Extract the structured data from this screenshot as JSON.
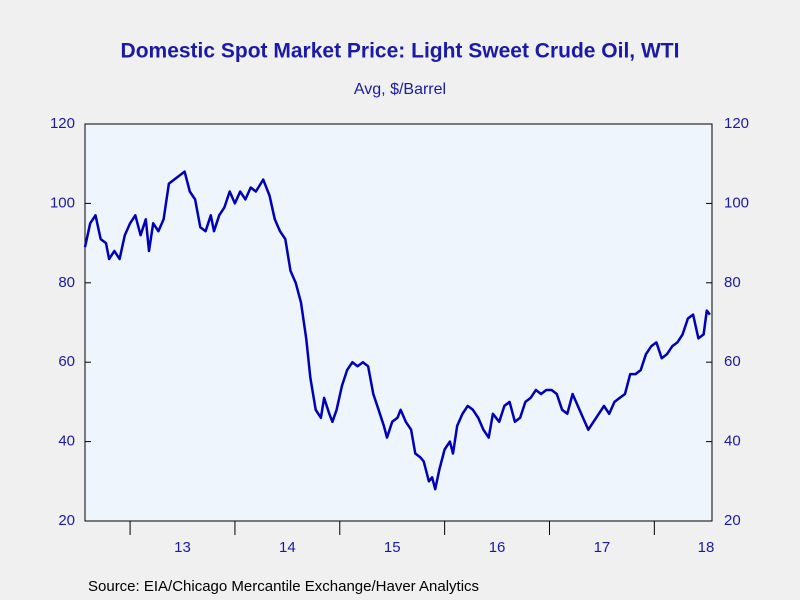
{
  "chart_data": {
    "type": "line",
    "title": "Domestic Spot Market Price: Light Sweet Crude Oil, WTI",
    "subtitle": "Avg, $/Barrel",
    "source": "Source:  EIA/Chicago Mercantile Exchange/Haver Analytics",
    "x": [
      2012.57,
      2012.62,
      2012.67,
      2012.72,
      2012.77,
      2012.8,
      2012.85,
      2012.9,
      2012.95,
      2013.0,
      2013.05,
      2013.1,
      2013.15,
      2013.18,
      2013.22,
      2013.27,
      2013.32,
      2013.37,
      2013.42,
      2013.47,
      2013.52,
      2013.57,
      2013.62,
      2013.67,
      2013.72,
      2013.77,
      2013.8,
      2013.85,
      2013.9,
      2013.95,
      2014.0,
      2014.05,
      2014.1,
      2014.15,
      2014.2,
      2014.27,
      2014.33,
      2014.38,
      2014.43,
      2014.48,
      2014.53,
      2014.58,
      2014.63,
      2014.68,
      2014.72,
      2014.77,
      2014.82,
      2014.85,
      2014.9,
      2014.93,
      2014.97,
      2015.02,
      2015.07,
      2015.12,
      2015.17,
      2015.22,
      2015.27,
      2015.32,
      2015.37,
      2015.42,
      2015.45,
      2015.5,
      2015.55,
      2015.58,
      2015.63,
      2015.68,
      2015.72,
      2015.77,
      2015.8,
      2015.85,
      2015.88,
      2015.91,
      2015.95,
      2016.0,
      2016.05,
      2016.08,
      2016.12,
      2016.17,
      2016.22,
      2016.27,
      2016.32,
      2016.37,
      2016.42,
      2016.46,
      2016.52,
      2016.57,
      2016.62,
      2016.67,
      2016.72,
      2016.77,
      2016.82,
      2016.87,
      2016.92,
      2016.97,
      2017.02,
      2017.07,
      2017.12,
      2017.17,
      2017.22,
      2017.27,
      2017.32,
      2017.37,
      2017.42,
      2017.47,
      2017.52,
      2017.57,
      2017.62,
      2017.67,
      2017.72,
      2017.77,
      2017.82,
      2017.87,
      2017.92,
      2017.97,
      2018.02,
      2018.07,
      2018.12,
      2018.17,
      2018.22,
      2018.27,
      2018.32,
      2018.37,
      2018.42,
      2018.47,
      2018.5,
      2018.53
    ],
    "series": [
      {
        "color": "#0000b4",
        "values": [
          89,
          95,
          97,
          91,
          90,
          86,
          88,
          86,
          92,
          95,
          97,
          92,
          96,
          88,
          95,
          93,
          96,
          105,
          106,
          107,
          108,
          103,
          101,
          94,
          93,
          97,
          93,
          97,
          99,
          103,
          100,
          103,
          101,
          104,
          103,
          106,
          102,
          96,
          93,
          91,
          83,
          80,
          75,
          66,
          56,
          48,
          46,
          51,
          47,
          45,
          48,
          54,
          58,
          60,
          59,
          60,
          59,
          52,
          48,
          44,
          41,
          45,
          46,
          48,
          45,
          43,
          37,
          36,
          35,
          30,
          31,
          28,
          33,
          38,
          40,
          37,
          44,
          47,
          49,
          48,
          46,
          43,
          41,
          47,
          45,
          49,
          50,
          45,
          46,
          50,
          51,
          53,
          52,
          53,
          53,
          52,
          48,
          47,
          52,
          49,
          46,
          43,
          45,
          47,
          49,
          47,
          50,
          51,
          52,
          57,
          57,
          58,
          62,
          64,
          65,
          61,
          62,
          64,
          65,
          67,
          71,
          72,
          66,
          67,
          73,
          72
        ]
      }
    ],
    "xlim": [
      2012.57,
      2018.55
    ],
    "xticks": [
      {
        "value": 2013.5,
        "label": "13"
      },
      {
        "value": 2014.5,
        "label": "14"
      },
      {
        "value": 2015.5,
        "label": "15"
      },
      {
        "value": 2016.5,
        "label": "16"
      },
      {
        "value": 2017.5,
        "label": "17"
      },
      {
        "value": 2018.5,
        "label": "18"
      }
    ],
    "ylim": [
      20,
      120
    ],
    "yticks": [
      20,
      40,
      60,
      80,
      100,
      120
    ]
  }
}
